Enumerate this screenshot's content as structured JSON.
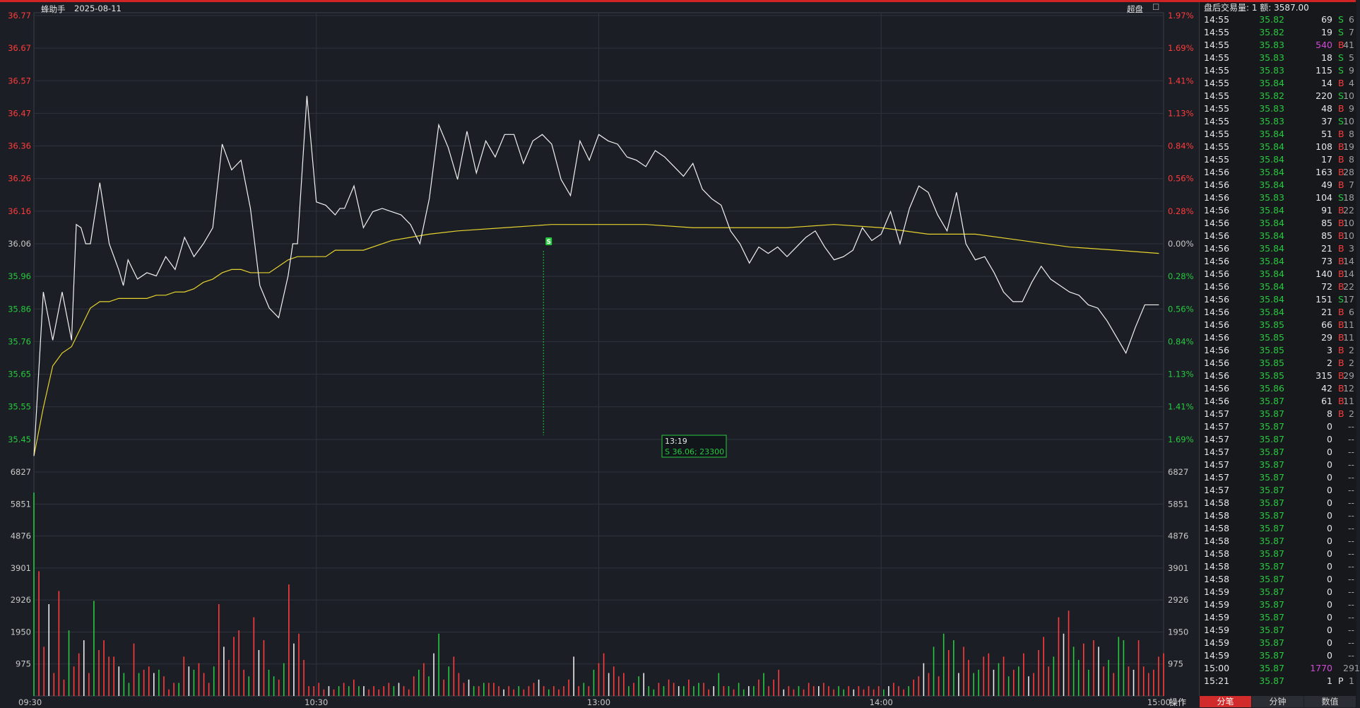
{
  "header": {
    "app_name": "蜂助手",
    "date": "2025-08-11",
    "mode_label": "超盘",
    "checkbox_glyph": "☐"
  },
  "chart_data": {
    "type": "line",
    "title": "",
    "prev_close": 36.06,
    "price_ticks": [
      "36.77",
      "36.67",
      "36.57",
      "36.47",
      "36.36",
      "36.26",
      "36.16",
      "36.06",
      "35.96",
      "35.86",
      "35.76",
      "35.65",
      "35.55",
      "35.45"
    ],
    "pct_ticks": [
      "1.97%",
      "1.69%",
      "1.41%",
      "1.13%",
      "0.84%",
      "0.56%",
      "0.28%",
      "0.00%",
      "0.28%",
      "0.56%",
      "0.84%",
      "1.13%",
      "1.41%",
      "1.69%"
    ],
    "volume_ticks": [
      "6827",
      "5851",
      "4876",
      "3901",
      "2926",
      "1950",
      "975"
    ],
    "time_ticks": [
      "09:30",
      "10:30",
      "13:00",
      "14:00",
      "15:00"
    ],
    "ylim": [
      35.35,
      36.77
    ],
    "volume_max": 6827,
    "price": {
      "x": [
        0,
        2,
        4,
        6,
        8,
        9,
        10,
        11,
        12,
        14,
        16,
        18,
        19,
        20,
        22,
        24,
        26,
        28,
        30,
        32,
        34,
        36,
        38,
        40,
        42,
        44,
        46,
        48,
        50,
        52,
        54,
        55,
        56,
        58,
        60,
        62,
        64,
        65,
        66,
        68,
        70,
        72,
        74,
        76,
        78,
        80,
        82,
        84,
        86,
        88,
        90,
        92,
        94,
        96,
        98,
        100,
        102,
        104,
        106,
        108,
        110,
        112,
        114,
        116,
        118,
        120,
        122,
        124,
        126,
        128,
        130,
        132,
        134,
        136,
        138,
        140,
        142,
        144,
        146,
        148,
        150,
        152,
        154,
        156,
        158,
        160,
        162,
        164,
        166,
        168,
        170,
        172,
        174,
        176,
        178,
        180,
        182,
        184,
        186,
        188,
        190,
        192,
        194,
        196,
        198,
        200,
        202,
        204,
        206,
        208,
        210,
        212,
        214,
        216,
        218,
        220,
        222,
        224,
        226,
        228,
        230,
        232,
        234,
        236,
        238,
        239
      ],
      "y": [
        35.4,
        35.91,
        35.76,
        35.91,
        35.76,
        36.12,
        36.11,
        36.06,
        36.06,
        36.25,
        36.06,
        35.98,
        35.93,
        36.01,
        35.95,
        35.97,
        35.96,
        36.02,
        35.98,
        36.08,
        36.02,
        36.06,
        36.11,
        36.37,
        36.29,
        36.32,
        36.17,
        35.93,
        35.86,
        35.83,
        35.96,
        36.06,
        36.06,
        36.52,
        36.19,
        36.18,
        36.15,
        36.17,
        36.17,
        36.24,
        36.11,
        36.16,
        36.17,
        36.16,
        36.15,
        36.12,
        36.06,
        36.2,
        36.43,
        36.36,
        36.26,
        36.41,
        36.28,
        36.38,
        36.33,
        36.4,
        36.4,
        36.31,
        36.38,
        36.4,
        36.37,
        36.26,
        36.21,
        36.38,
        36.32,
        36.4,
        36.38,
        36.37,
        36.33,
        36.32,
        36.3,
        36.35,
        36.33,
        36.3,
        36.27,
        36.31,
        36.23,
        36.2,
        36.18,
        36.1,
        36.06,
        36.0,
        36.05,
        36.03,
        36.05,
        36.02,
        36.05,
        36.08,
        36.1,
        36.05,
        36.01,
        36.02,
        36.04,
        36.11,
        36.07,
        36.09,
        36.16,
        36.06,
        36.17,
        36.24,
        36.22,
        36.15,
        36.1,
        36.22,
        36.06,
        36.01,
        36.02,
        35.97,
        35.91,
        35.88,
        35.88,
        35.94,
        35.99,
        35.95,
        35.93,
        35.91,
        35.9,
        35.87,
        35.86,
        35.82,
        35.77,
        35.72,
        35.8,
        35.87,
        35.87,
        35.87
      ],
      "color": "#f2f2f2"
    },
    "avg_price": {
      "x": [
        0,
        2,
        4,
        6,
        8,
        10,
        12,
        14,
        16,
        18,
        20,
        22,
        24,
        26,
        28,
        30,
        32,
        34,
        36,
        38,
        40,
        42,
        44,
        46,
        48,
        50,
        52,
        54,
        56,
        58,
        60,
        62,
        64,
        70,
        76,
        80,
        84,
        90,
        100,
        110,
        120,
        130,
        140,
        150,
        160,
        170,
        180,
        190,
        200,
        210,
        220,
        230,
        239
      ],
      "y": [
        35.4,
        35.55,
        35.68,
        35.72,
        35.74,
        35.8,
        35.86,
        35.88,
        35.88,
        35.89,
        35.89,
        35.89,
        35.89,
        35.9,
        35.9,
        35.91,
        35.91,
        35.92,
        35.94,
        35.95,
        35.97,
        35.98,
        35.98,
        35.97,
        35.97,
        35.97,
        35.99,
        36.01,
        36.02,
        36.02,
        36.02,
        36.02,
        36.04,
        36.04,
        36.07,
        36.08,
        36.09,
        36.1,
        36.11,
        36.12,
        36.12,
        36.12,
        36.11,
        36.11,
        36.11,
        36.12,
        36.11,
        36.09,
        36.09,
        36.07,
        36.05,
        36.04,
        36.03
      ],
      "color": "#e6d32e"
    },
    "volume_bars": [
      6200,
      3800,
      1500,
      2800,
      700,
      3200,
      500,
      2000,
      900,
      1300,
      1700,
      700,
      2900,
      1400,
      1700,
      1200,
      1200,
      900,
      700,
      400,
      1600,
      700,
      800,
      900,
      700,
      800,
      600,
      200,
      400,
      400,
      1200,
      900,
      800,
      1000,
      700,
      400,
      900,
      2800,
      1500,
      1100,
      1800,
      2000,
      800,
      600,
      2400,
      1400,
      1700,
      800,
      600,
      500,
      1000,
      3400,
      1600,
      1900,
      1100,
      300,
      300,
      400,
      200,
      300,
      200,
      300,
      400,
      300,
      500,
      300,
      300,
      200,
      300,
      200,
      300,
      400,
      300,
      400,
      300,
      200,
      600,
      800,
      1000,
      600,
      1300,
      1900,
      500,
      900,
      1200,
      700,
      400,
      500,
      300,
      300,
      400,
      400,
      400,
      300,
      200,
      300,
      200,
      300,
      200,
      300,
      400,
      500,
      300,
      200,
      300,
      200,
      300,
      500,
      1200,
      300,
      400,
      300,
      800,
      1000,
      1300,
      700,
      900,
      600,
      700,
      300,
      400,
      600,
      700,
      300,
      200,
      400,
      300,
      500,
      400,
      300,
      300,
      500,
      300,
      400,
      400,
      200,
      300,
      700,
      300,
      300,
      200,
      400,
      200,
      300,
      300,
      500,
      700,
      300,
      500,
      800,
      200,
      300,
      200,
      300,
      200,
      400,
      300,
      300,
      400,
      300,
      200,
      300,
      200,
      300,
      200,
      300,
      200,
      300,
      200,
      300,
      200,
      300,
      400,
      300,
      200,
      300,
      500,
      600,
      1000,
      700,
      1500,
      600,
      1900,
      1400,
      1700,
      700,
      1500,
      1100,
      700,
      800,
      1200,
      1300,
      800,
      1000,
      1200,
      600,
      800,
      900,
      1300,
      600,
      700,
      1400,
      1800,
      900,
      1200,
      2400,
      1900,
      2600,
      1500,
      1100,
      1600,
      800,
      1700,
      1500,
      900,
      1100,
      700,
      1800,
      1700,
      900,
      800,
      1700,
      900,
      700,
      800,
      1200,
      1300
    ],
    "crosshair": {
      "time": "13:19",
      "label": "S 36.06; 23300",
      "marker": "S",
      "x": 109,
      "price": 36.06
    }
  },
  "panel": {
    "header": "盘后交易量: 1  额: 3587.00",
    "trades": [
      {
        "time": "14:55",
        "price": "35.82",
        "vol": "69",
        "side": "S",
        "count": "6"
      },
      {
        "time": "14:55",
        "price": "35.82",
        "vol": "19",
        "side": "S",
        "count": "7"
      },
      {
        "time": "14:55",
        "price": "35.83",
        "vol": "540",
        "side": "B",
        "count": "41",
        "big": true
      },
      {
        "time": "14:55",
        "price": "35.83",
        "vol": "18",
        "side": "S",
        "count": "5"
      },
      {
        "time": "14:55",
        "price": "35.83",
        "vol": "115",
        "side": "S",
        "count": "9"
      },
      {
        "time": "14:55",
        "price": "35.84",
        "vol": "14",
        "side": "B",
        "count": "4"
      },
      {
        "time": "14:55",
        "price": "35.82",
        "vol": "220",
        "side": "S",
        "count": "10"
      },
      {
        "time": "14:55",
        "price": "35.83",
        "vol": "48",
        "side": "B",
        "count": "9"
      },
      {
        "time": "14:55",
        "price": "35.83",
        "vol": "37",
        "side": "S",
        "count": "10"
      },
      {
        "time": "14:55",
        "price": "35.84",
        "vol": "51",
        "side": "B",
        "count": "8"
      },
      {
        "time": "14:55",
        "price": "35.84",
        "vol": "108",
        "side": "B",
        "count": "19"
      },
      {
        "time": "14:55",
        "price": "35.84",
        "vol": "17",
        "side": "B",
        "count": "8"
      },
      {
        "time": "14:56",
        "price": "35.84",
        "vol": "163",
        "side": "B",
        "count": "28"
      },
      {
        "time": "14:56",
        "price": "35.84",
        "vol": "49",
        "side": "B",
        "count": "7"
      },
      {
        "time": "14:56",
        "price": "35.83",
        "vol": "104",
        "side": "S",
        "count": "18"
      },
      {
        "time": "14:56",
        "price": "35.84",
        "vol": "91",
        "side": "B",
        "count": "22"
      },
      {
        "time": "14:56",
        "price": "35.84",
        "vol": "85",
        "side": "B",
        "count": "10"
      },
      {
        "time": "14:56",
        "price": "35.84",
        "vol": "85",
        "side": "B",
        "count": "10"
      },
      {
        "time": "14:56",
        "price": "35.84",
        "vol": "21",
        "side": "B",
        "count": "3"
      },
      {
        "time": "14:56",
        "price": "35.84",
        "vol": "73",
        "side": "B",
        "count": "14"
      },
      {
        "time": "14:56",
        "price": "35.84",
        "vol": "140",
        "side": "B",
        "count": "14"
      },
      {
        "time": "14:56",
        "price": "35.84",
        "vol": "72",
        "side": "B",
        "count": "22"
      },
      {
        "time": "14:56",
        "price": "35.84",
        "vol": "151",
        "side": "S",
        "count": "17"
      },
      {
        "time": "14:56",
        "price": "35.84",
        "vol": "21",
        "side": "B",
        "count": "6"
      },
      {
        "time": "14:56",
        "price": "35.85",
        "vol": "66",
        "side": "B",
        "count": "11"
      },
      {
        "time": "14:56",
        "price": "35.85",
        "vol": "29",
        "side": "B",
        "count": "11"
      },
      {
        "time": "14:56",
        "price": "35.85",
        "vol": "3",
        "side": "B",
        "count": "2"
      },
      {
        "time": "14:56",
        "price": "35.85",
        "vol": "2",
        "side": "B",
        "count": "2"
      },
      {
        "time": "14:56",
        "price": "35.85",
        "vol": "315",
        "side": "B",
        "count": "29"
      },
      {
        "time": "14:56",
        "price": "35.86",
        "vol": "42",
        "side": "B",
        "count": "12"
      },
      {
        "time": "14:56",
        "price": "35.87",
        "vol": "61",
        "side": "B",
        "count": "11"
      },
      {
        "time": "14:57",
        "price": "35.87",
        "vol": "8",
        "side": "B",
        "count": "2"
      },
      {
        "time": "14:57",
        "price": "35.87",
        "vol": "0",
        "side": "",
        "count": "--"
      },
      {
        "time": "14:57",
        "price": "35.87",
        "vol": "0",
        "side": "",
        "count": "--"
      },
      {
        "time": "14:57",
        "price": "35.87",
        "vol": "0",
        "side": "",
        "count": "--"
      },
      {
        "time": "14:57",
        "price": "35.87",
        "vol": "0",
        "side": "",
        "count": "--"
      },
      {
        "time": "14:57",
        "price": "35.87",
        "vol": "0",
        "side": "",
        "count": "--"
      },
      {
        "time": "14:57",
        "price": "35.87",
        "vol": "0",
        "side": "",
        "count": "--"
      },
      {
        "time": "14:58",
        "price": "35.87",
        "vol": "0",
        "side": "",
        "count": "--"
      },
      {
        "time": "14:58",
        "price": "35.87",
        "vol": "0",
        "side": "",
        "count": "--"
      },
      {
        "time": "14:58",
        "price": "35.87",
        "vol": "0",
        "side": "",
        "count": "--"
      },
      {
        "time": "14:58",
        "price": "35.87",
        "vol": "0",
        "side": "",
        "count": "--"
      },
      {
        "time": "14:58",
        "price": "35.87",
        "vol": "0",
        "side": "",
        "count": "--"
      },
      {
        "time": "14:58",
        "price": "35.87",
        "vol": "0",
        "side": "",
        "count": "--"
      },
      {
        "time": "14:58",
        "price": "35.87",
        "vol": "0",
        "side": "",
        "count": "--"
      },
      {
        "time": "14:59",
        "price": "35.87",
        "vol": "0",
        "side": "",
        "count": "--"
      },
      {
        "time": "14:59",
        "price": "35.87",
        "vol": "0",
        "side": "",
        "count": "--"
      },
      {
        "time": "14:59",
        "price": "35.87",
        "vol": "0",
        "side": "",
        "count": "--"
      },
      {
        "time": "14:59",
        "price": "35.87",
        "vol": "0",
        "side": "",
        "count": "--"
      },
      {
        "time": "14:59",
        "price": "35.87",
        "vol": "0",
        "side": "",
        "count": "--"
      },
      {
        "time": "14:59",
        "price": "35.87",
        "vol": "0",
        "side": "",
        "count": "--"
      },
      {
        "time": "15:00",
        "price": "35.87",
        "vol": "1770",
        "side": "",
        "count": "291",
        "big": true
      },
      {
        "time": "15:21",
        "price": "35.87",
        "vol": "1",
        "side": "P",
        "count": "1"
      }
    ],
    "tabs": [
      "分笔",
      "分钟",
      "数值"
    ],
    "action_label": "操作"
  },
  "colors": {
    "up": "#ff3b3b",
    "down": "#27c93f",
    "big": "#d24bd8",
    "grid": "#2e333c",
    "axis_text": "#c8c8c8"
  }
}
